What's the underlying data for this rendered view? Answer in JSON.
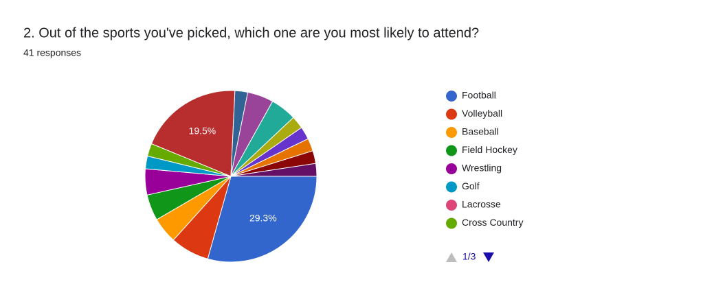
{
  "chart_data": {
    "type": "pie",
    "title": "2.  Out of the sports you've picked, which one are you most likely to attend?",
    "subtitle": "41 responses",
    "categories": [
      "Football",
      "Volleyball",
      "Baseball",
      "Field Hockey",
      "Wrestling",
      "Golf",
      "Lacrosse",
      "Cross Country",
      null,
      null,
      null,
      null,
      null,
      null,
      null,
      null,
      null
    ],
    "values": [
      29.3,
      7.3,
      4.9,
      4.9,
      4.9,
      2.4,
      0,
      2.4,
      19.5,
      2.4,
      4.9,
      4.9,
      2.4,
      2.4,
      2.4,
      2.4,
      2.4
    ],
    "value_labels": [
      "29.3%",
      null,
      null,
      null,
      null,
      null,
      null,
      null,
      "19.5%",
      null,
      null,
      null,
      null,
      null,
      null,
      null,
      null
    ],
    "colors": [
      "#3366cc",
      "#dc3912",
      "#ff9900",
      "#109618",
      "#990099",
      "#0099c6",
      "#dd4477",
      "#66aa00",
      "#b82e2e",
      "#316395",
      "#994499",
      "#22aa99",
      "#aaaa11",
      "#6633cc",
      "#e67300",
      "#8b0707",
      "#651067"
    ],
    "pager": "1/3"
  }
}
